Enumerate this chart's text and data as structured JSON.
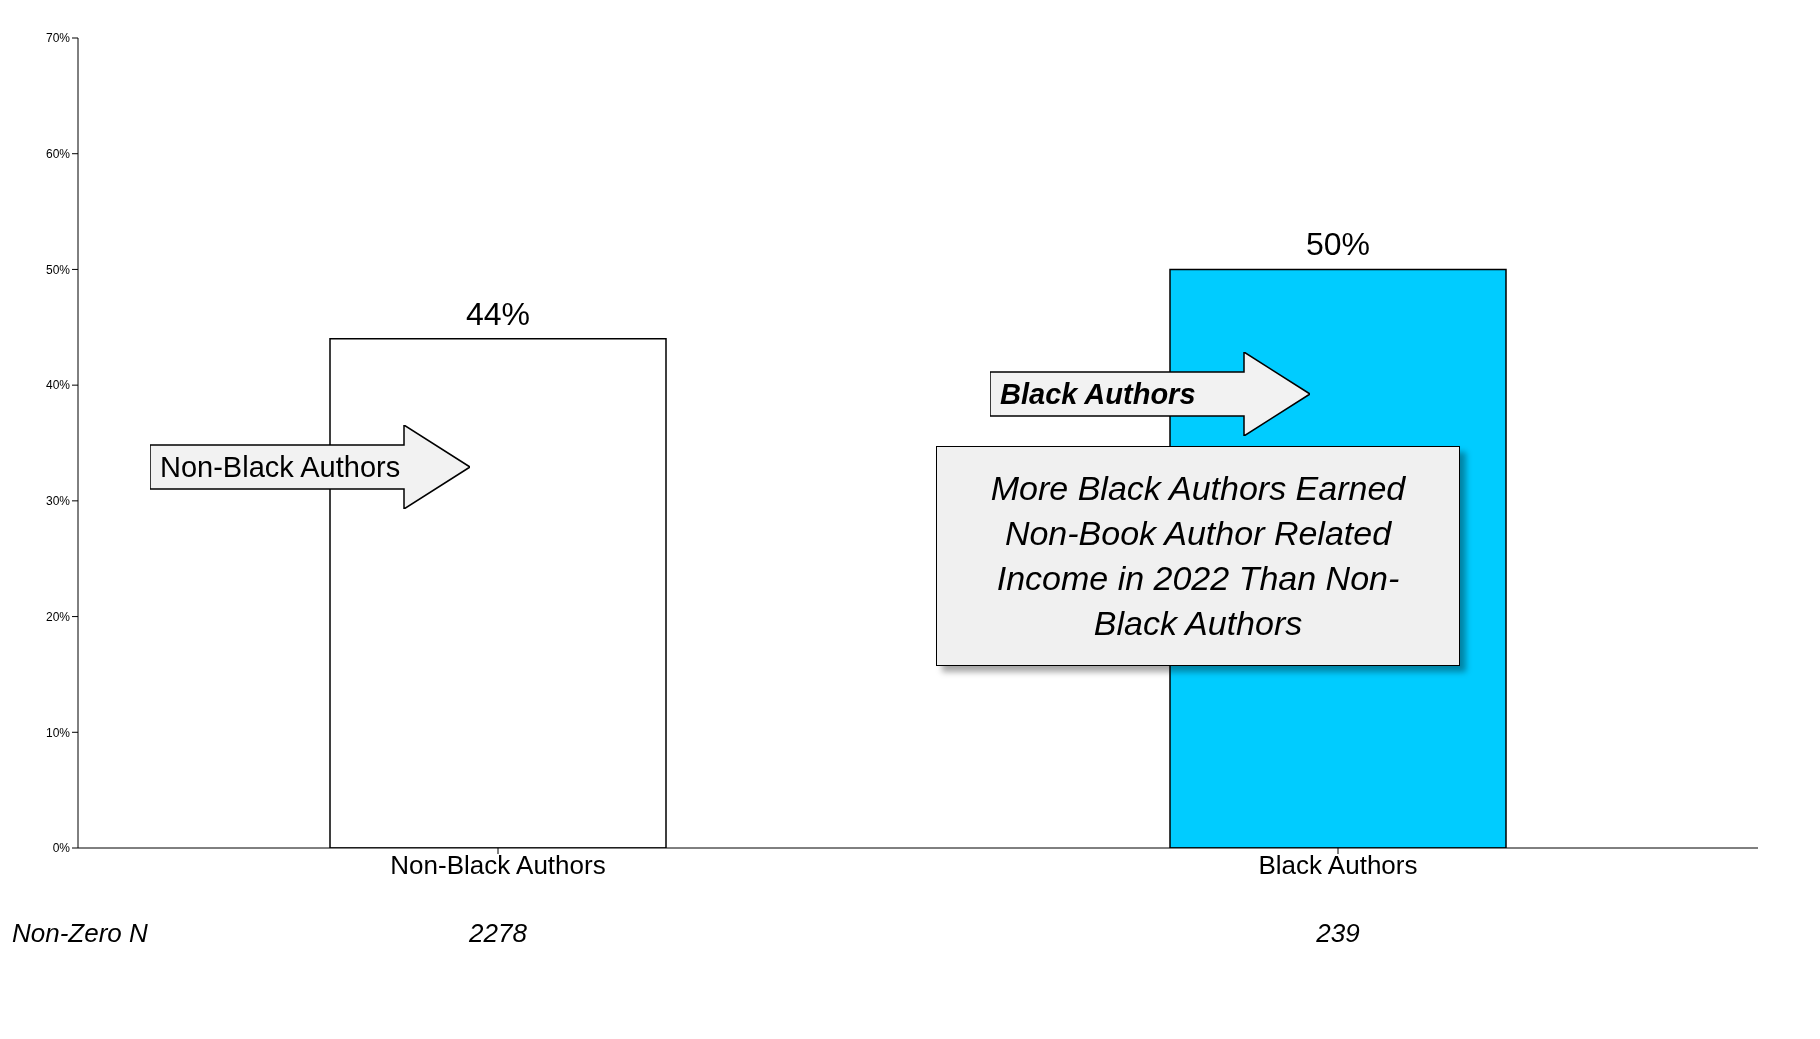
{
  "chart_data": {
    "type": "bar",
    "categories": [
      "Non-Black Authors",
      "Black Authors"
    ],
    "values": [
      44,
      50
    ],
    "colors": [
      "#ffffff",
      "#00ccff"
    ],
    "value_labels": [
      "44%",
      "50%"
    ],
    "ylim": [
      0,
      70
    ],
    "yticks": [
      {
        "value": 0,
        "label": "0%"
      },
      {
        "value": 10,
        "label": "10%"
      },
      {
        "value": 20,
        "label": "20%"
      },
      {
        "value": 30,
        "label": "30%"
      },
      {
        "value": 40,
        "label": "40%"
      },
      {
        "value": 50,
        "label": "50%"
      },
      {
        "value": 60,
        "label": "60%"
      },
      {
        "value": 70,
        "label": "70%"
      }
    ],
    "grid": false,
    "legend": false,
    "annotations": [
      "Non-Black Authors",
      "Black Authors",
      "More Black Authors Earned Non-Book Author Related Income in 2022 Than Non-Black Authors",
      "Non-Zero N",
      "2278",
      "239"
    ]
  }
}
